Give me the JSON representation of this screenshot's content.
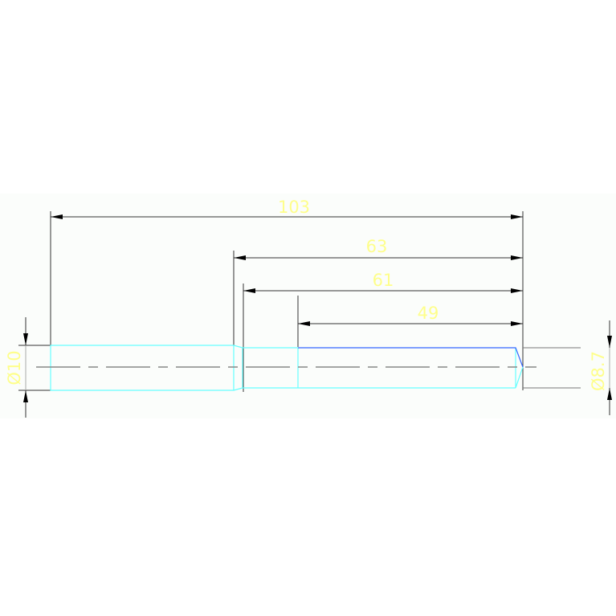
{
  "drawing": {
    "dimensions": {
      "overall_length": "103",
      "length_63": "63",
      "length_61": "61",
      "length_49": "49",
      "diameter_large": "Ø10",
      "diameter_small": "Ø8.7"
    },
    "colors": {
      "background": "#fbfdfb",
      "part_outline": "#66ffff",
      "edge_highlight": "#3366ff",
      "dimension_line": "#333333",
      "dimension_text": "#ffff66",
      "centerline": "#888888"
    }
  }
}
